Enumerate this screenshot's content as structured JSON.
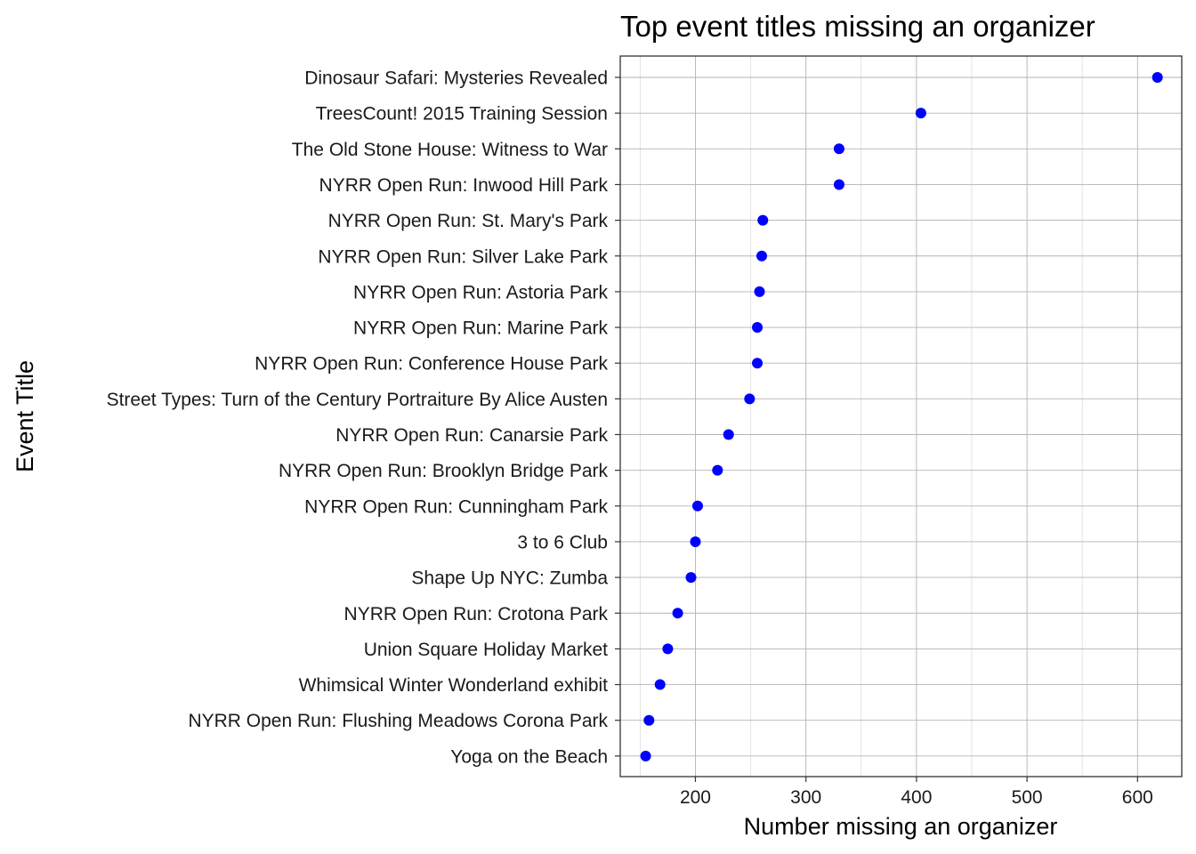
{
  "chart_data": {
    "type": "scatter",
    "title": "Top event titles missing an organizer",
    "xlabel": "Number missing an organizer",
    "ylabel": "Event Title",
    "xlim": [
      132,
      640
    ],
    "x_ticks": [
      200,
      300,
      400,
      500,
      600
    ],
    "x_minor_ticks": [
      150,
      250,
      350,
      450,
      550
    ],
    "grid": true,
    "legend": "none",
    "point_color": "#0000ff",
    "categories": [
      "Dinosaur Safari: Mysteries Revealed",
      "TreesCount! 2015 Training Session",
      "The Old Stone House: Witness to War",
      "NYRR Open Run: Inwood Hill Park",
      "NYRR Open Run: St. Mary's Park",
      "NYRR Open Run: Silver Lake Park",
      "NYRR Open Run: Astoria Park",
      "NYRR Open Run: Marine Park",
      "NYRR Open Run: Conference House Park",
      "Street Types: Turn of the Century Portraiture By Alice Austen",
      "NYRR Open Run: Canarsie Park",
      "NYRR Open Run: Brooklyn Bridge Park",
      "NYRR Open Run: Cunningham Park",
      "3 to 6 Club",
      "Shape Up NYC: Zumba",
      "NYRR Open Run: Crotona Park",
      "Union Square Holiday Market",
      "Whimsical Winter Wonderland exhibit",
      "NYRR Open Run: Flushing Meadows Corona Park",
      "Yoga on the Beach"
    ],
    "values": [
      618,
      404,
      330,
      330,
      261,
      260,
      258,
      256,
      256,
      249,
      230,
      220,
      202,
      200,
      196,
      184,
      175,
      168,
      158,
      155
    ]
  }
}
